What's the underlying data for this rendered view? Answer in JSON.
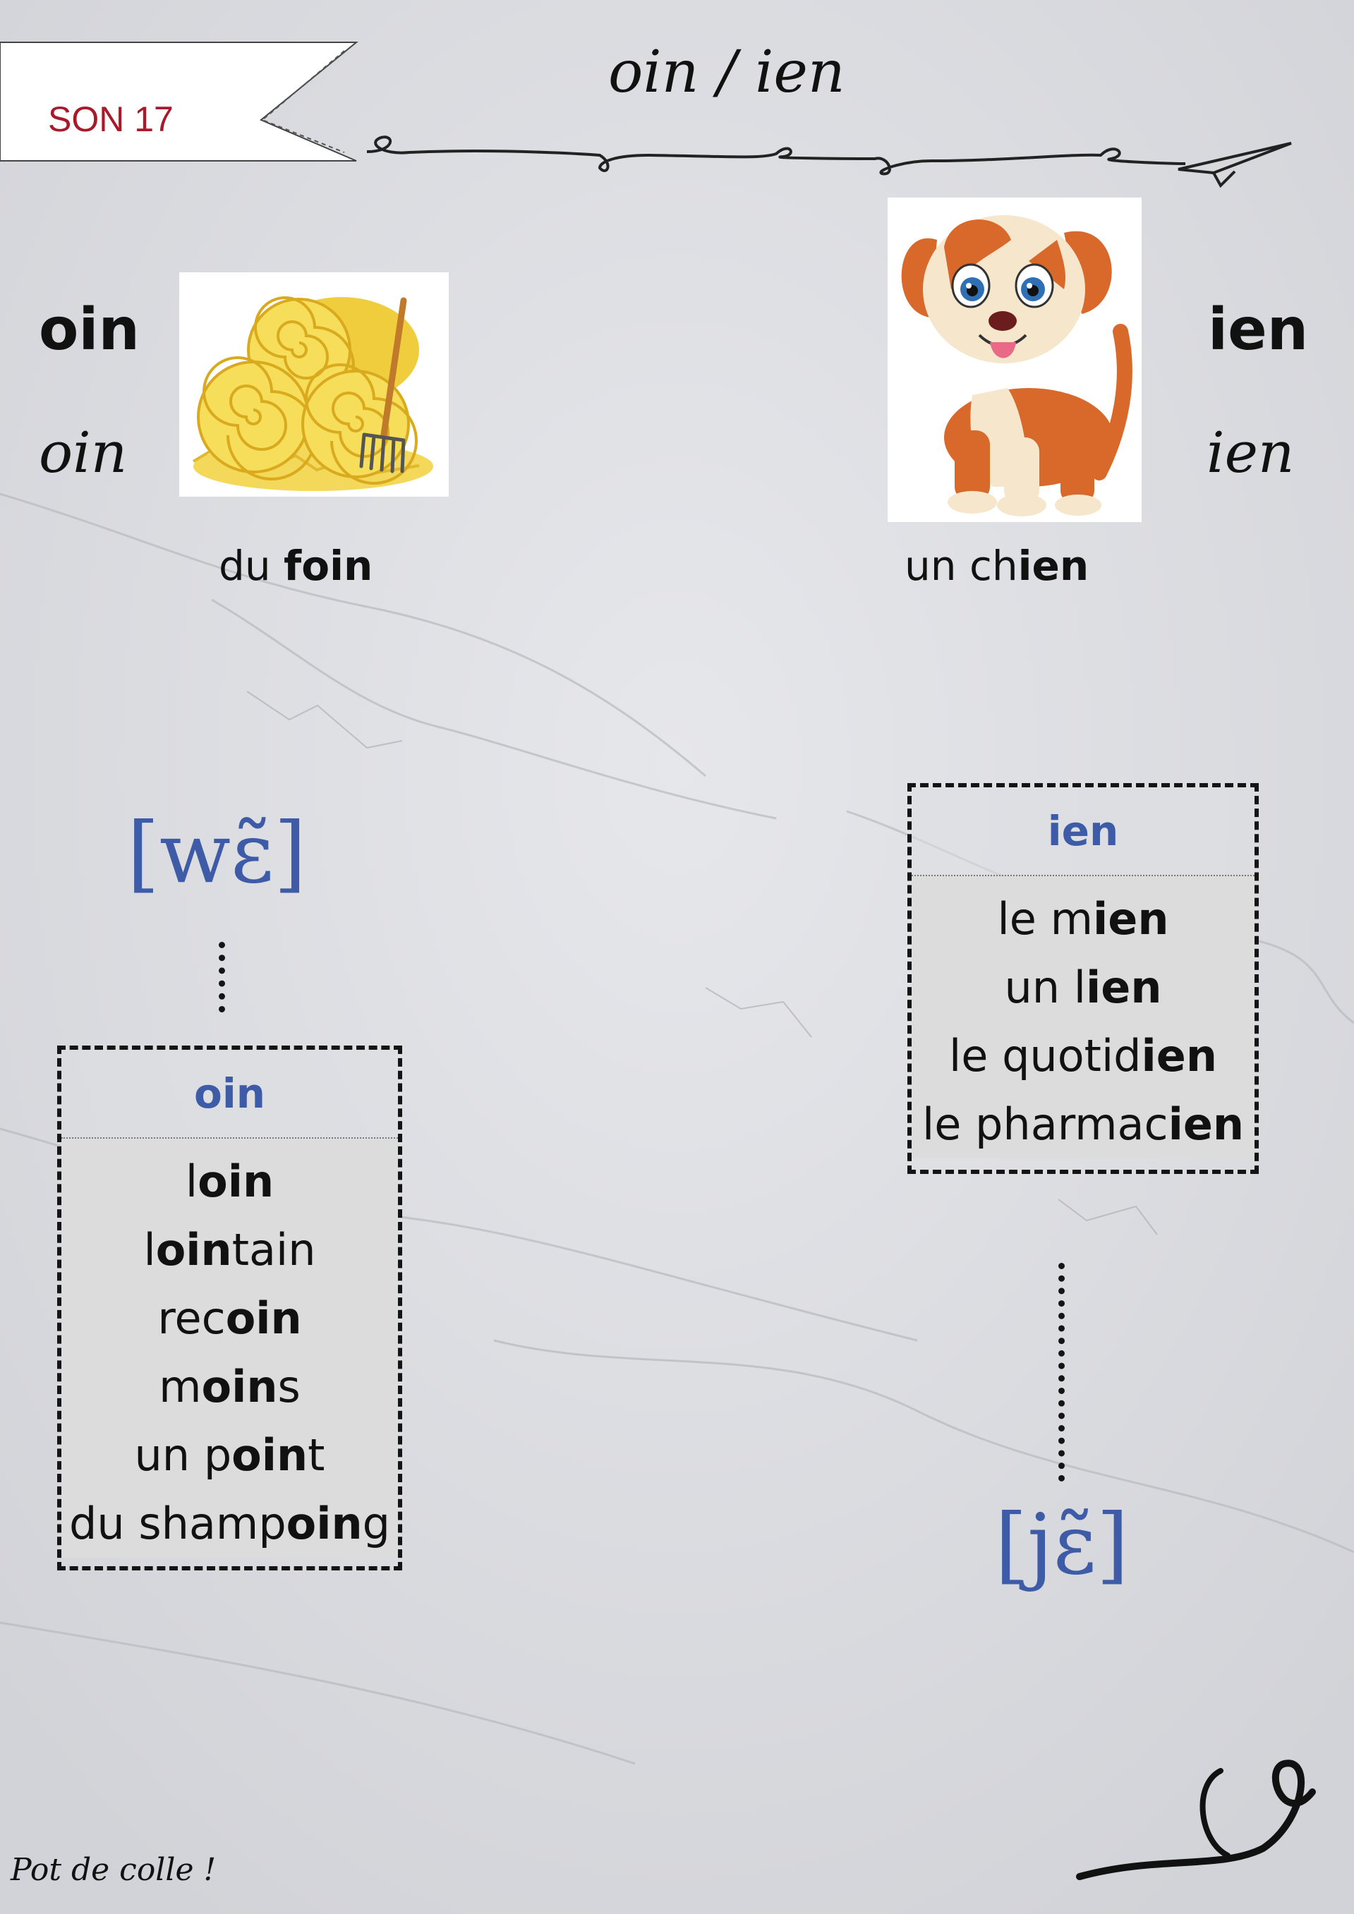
{
  "banner": {
    "label": "SON 17"
  },
  "title": "oin / ien",
  "left": {
    "letters_bold": "oin",
    "letters_script": "oin",
    "image_icon": "hay-bales-icon",
    "caption": {
      "plain": "du ",
      "bold": "foin"
    },
    "phoneme": "[wɛ̃]",
    "box": {
      "header": "oin",
      "words": [
        {
          "before": "l",
          "bold": "oin",
          "after": ""
        },
        {
          "before": "l",
          "bold": "oin",
          "after": "tain"
        },
        {
          "before": "rec",
          "bold": "oin",
          "after": ""
        },
        {
          "before": "m",
          "bold": "oin",
          "after": "s"
        },
        {
          "before": "un p",
          "bold": "oin",
          "after": "t"
        },
        {
          "before": "du shamp",
          "bold": "oin",
          "after": "g"
        }
      ]
    }
  },
  "right": {
    "letters_bold": "ien",
    "letters_script": "ien",
    "image_icon": "puppy-dog-icon",
    "caption": {
      "plain": "un ch",
      "bold": "ien"
    },
    "phoneme": "[jɛ̃]",
    "box": {
      "header": "ien",
      "words": [
        {
          "before": "le m",
          "bold": "ien",
          "after": ""
        },
        {
          "before": "un l",
          "bold": "ien",
          "after": ""
        },
        {
          "before": "le quotid",
          "bold": "ien",
          "after": ""
        },
        {
          "before": "le pharmac",
          "bold": "ien",
          "after": ""
        }
      ]
    }
  },
  "footer": "Pot de colle !",
  "colors": {
    "banner_text": "#a8192a",
    "phoneme_blue": "#3d5ba6",
    "ink": "#141414"
  }
}
